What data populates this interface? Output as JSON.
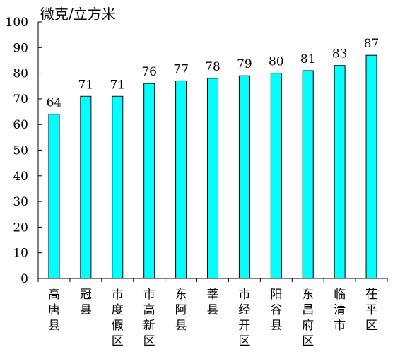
{
  "chart_data": {
    "type": "bar",
    "title": "",
    "xlabel": "",
    "ylabel": "微克/立方米",
    "ylim": [
      0,
      100
    ],
    "yticks": [
      0,
      10,
      20,
      30,
      40,
      50,
      60,
      70,
      80,
      90,
      100
    ],
    "categories": [
      "高唐县",
      "冠县",
      "市度假区",
      "市高新区",
      "东阿县",
      "莘县",
      "市经开区",
      "阳谷县",
      "东昌府区",
      "临清市",
      "茌平区"
    ],
    "values": [
      64,
      71,
      71,
      76,
      77,
      78,
      79,
      80,
      81,
      83,
      87
    ],
    "bar_color": "#00ffff",
    "bar_edge_color": "#000000",
    "grid": false,
    "legend": "none"
  }
}
